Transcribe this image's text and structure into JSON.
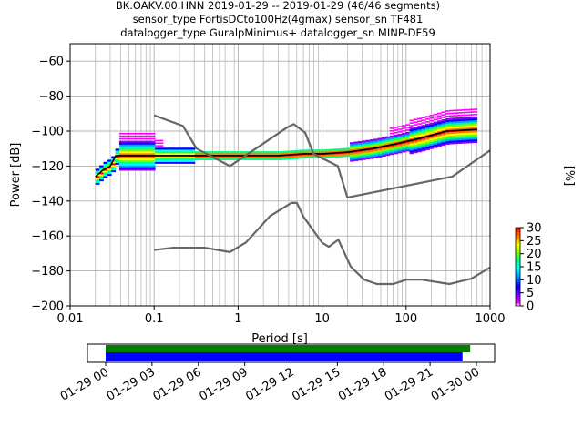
{
  "chart_data": {
    "type": "heatmap",
    "title_lines": [
      "BK.OAKV.00.HNN   2019-01-29 -- 2019-01-29  (46/46 segments)",
      "sensor_type FortisDCto100Hz(4gmax) sensor_sn TF481",
      "datalogger_type GuralpMinimus+ datalogger_sn MINP-DF59"
    ],
    "xlabel": "Period [s]",
    "ylabel": "Power [dB]",
    "xscale": "log",
    "xlim": [
      0.01,
      1000
    ],
    "ylim": [
      -200,
      -50
    ],
    "x_ticks": [
      0.01,
      0.1,
      1,
      10,
      100,
      1000
    ],
    "x_tick_labels": [
      "0.01",
      "0.1",
      "1",
      "10",
      "100",
      "1000"
    ],
    "y_ticks": [
      -200,
      -180,
      -160,
      -140,
      -120,
      -100,
      -80,
      -60
    ],
    "y_tick_labels": [
      "−200",
      "−180",
      "−160",
      "−140",
      "−120",
      "−100",
      "−80",
      "−60"
    ],
    "grid": true,
    "colorbar": {
      "label": "[%]",
      "min": 0,
      "max": 30,
      "ticks": [
        0,
        5,
        10,
        15,
        20,
        25,
        30
      ],
      "tick_labels": [
        "0",
        "5",
        "10",
        "15",
        "20",
        "25",
        "30"
      ]
    },
    "noise_models": [
      {
        "name": "NHNM",
        "points": [
          [
            0.1,
            -91
          ],
          [
            0.22,
            -97
          ],
          [
            0.32,
            -110
          ],
          [
            0.8,
            -120
          ],
          [
            3.8,
            -98
          ],
          [
            4.6,
            -96
          ],
          [
            6.3,
            -101
          ],
          [
            7.9,
            -113
          ],
          [
            15.4,
            -120
          ],
          [
            20,
            -138
          ],
          [
            354.8,
            -126
          ],
          [
            1000,
            -111
          ]
        ]
      },
      {
        "name": "NLNM",
        "points": [
          [
            0.1,
            -168
          ],
          [
            0.17,
            -166.7
          ],
          [
            0.4,
            -166.7
          ],
          [
            0.8,
            -169.2
          ],
          [
            1.24,
            -163.7
          ],
          [
            2.4,
            -148.6
          ],
          [
            4.3,
            -141.1
          ],
          [
            5,
            -141.1
          ],
          [
            6,
            -149
          ],
          [
            10,
            -163.8
          ],
          [
            12,
            -166.2
          ],
          [
            15.6,
            -162.1
          ],
          [
            21.9,
            -177.5
          ],
          [
            31.6,
            -185
          ],
          [
            45,
            -187.5
          ],
          [
            70,
            -187.5
          ],
          [
            101,
            -185
          ],
          [
            154,
            -185
          ],
          [
            328,
            -187.5
          ],
          [
            600,
            -184.4
          ],
          [
            1000,
            -178
          ]
        ]
      }
    ],
    "mode_line": [
      [
        0.02,
        -126
      ],
      [
        0.025,
        -122
      ],
      [
        0.03,
        -120
      ],
      [
        0.035,
        -114
      ],
      [
        0.05,
        -114
      ],
      [
        0.1,
        -114
      ],
      [
        0.3,
        -114
      ],
      [
        1,
        -114
      ],
      [
        3,
        -114
      ],
      [
        6,
        -113
      ],
      [
        10,
        -113
      ],
      [
        20,
        -112
      ],
      [
        40,
        -110
      ],
      [
        80,
        -107
      ],
      [
        150,
        -104
      ],
      [
        300,
        -100
      ],
      [
        700,
        -99
      ]
    ],
    "psd_coverage": {
      "label_ticks": [
        "01-29 00",
        "01-29 03",
        "01-29 06",
        "01-29 09",
        "01-29 12",
        "01-29 15",
        "01-29 18",
        "01-29 21",
        "01-30 00"
      ],
      "data_span_hours": [
        0,
        23.6
      ],
      "psd_span_hours": [
        0,
        23.1
      ],
      "data_color": "#008000",
      "psd_color": "#0000ff"
    }
  }
}
